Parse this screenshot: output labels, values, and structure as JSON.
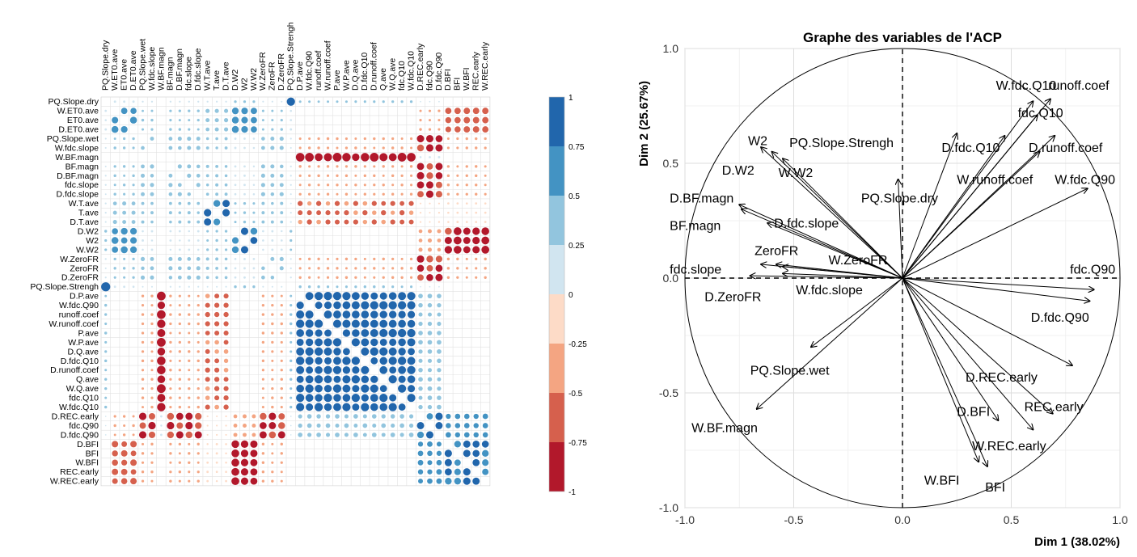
{
  "chart_data": [
    {
      "type": "heatmap",
      "variables": [
        "PQ.Slope.dry",
        "W.ET0.ave",
        "ET0.ave",
        "D.ET0.ave",
        "PQ.Slope.wet",
        "W.fdc.slope",
        "W.BF.magn",
        "BF.magn",
        "D.BF.magn",
        "fdc.slope",
        "D.fdc.slope",
        "W.T.ave",
        "T.ave",
        "D.T.ave",
        "D.W2",
        "W2",
        "W.W2",
        "W.ZeroFR",
        "ZeroFR",
        "D.ZeroFR",
        "PQ.Slope.Strengh",
        "D.P.ave",
        "W.fdc.Q90",
        "runoff.coef",
        "W.runoff.coef",
        "P.ave",
        "W.P.ave",
        "D.Q.ave",
        "D.fdc.Q10",
        "D.runoff.coef",
        "Q.ave",
        "W.Q.ave",
        "fdc.Q10",
        "W.fdc.Q10",
        "D.REC.early",
        "fdc.Q90",
        "D.fdc.Q90",
        "D.BFI",
        "BFI",
        "W.BFI",
        "REC.early",
        "W.REC.early"
      ],
      "groups": {
        "A": [
          "W.ET0.ave",
          "ET0.ave",
          "D.ET0.ave"
        ],
        "B": [
          "PQ.Slope.wet",
          "W.fdc.slope",
          "BF.magn",
          "D.BF.magn",
          "fdc.slope",
          "D.fdc.slope",
          "W.ZeroFR",
          "ZeroFR",
          "D.ZeroFR"
        ],
        "C": [
          "W.T.ave",
          "T.ave",
          "D.T.ave"
        ],
        "D": [
          "D.W2",
          "W2",
          "W.W2"
        ],
        "E": [
          "D.P.ave",
          "W.fdc.Q90",
          "runoff.coef",
          "W.runoff.coef",
          "P.ave",
          "W.P.ave",
          "D.Q.ave",
          "D.fdc.Q10",
          "D.runoff.coef",
          "Q.ave",
          "W.Q.ave",
          "fdc.Q10",
          "W.fdc.Q10"
        ],
        "F": [
          "D.REC.early",
          "fdc.Q90",
          "D.fdc.Q90"
        ],
        "G": [
          "D.BFI",
          "BFI",
          "W.BFI",
          "REC.early",
          "W.REC.early"
        ],
        "H": [
          "W.BF.magn"
        ],
        "I": [
          "PQ.Slope.dry",
          "PQ.Slope.Strengh"
        ]
      },
      "group_correlations": {
        "AA": 0.75,
        "AB": 0.3,
        "AC": 0.45,
        "AD": 0.75,
        "AE": 0.1,
        "AF": -0.3,
        "AG": -0.7,
        "AH": 0.0,
        "AI": 0.25,
        "BB": 0.45,
        "BC": 0.35,
        "BD": 0.25,
        "BE": -0.3,
        "BF": -0.8,
        "BG": -0.3,
        "BH": 0.0,
        "BI": 0.2,
        "CC": 0.8,
        "CD": 0.3,
        "CE": -0.55,
        "CF": -0.2,
        "CG": -0.25,
        "CH": 0.0,
        "CI": 0.2,
        "DD": 0.8,
        "DE": 0.05,
        "DF": -0.45,
        "DG": -0.85,
        "DH": 0.0,
        "DI": 0.3,
        "EE": 0.9,
        "EF": 0.5,
        "EG": 0.05,
        "EH": -0.95,
        "EI": 0.3,
        "FF": 0.8,
        "FG": 0.6,
        "FH": 0.25,
        "FI": 0.15,
        "GG": 0.8,
        "GH": 0.0,
        "GI": 0.05,
        "HH": 1.0,
        "HI": 0.0,
        "II": 1.0
      },
      "colorbar": {
        "ticks": [
          "1",
          "0.75",
          "0.5",
          "0.25",
          "0",
          "-0.25",
          "-0.5",
          "-0.75",
          "-1"
        ],
        "colors": [
          "#2166ac",
          "#4393c3",
          "#92c5de",
          "#d1e5f0",
          "#fddbc7",
          "#f4a582",
          "#d6604d",
          "#b2182b"
        ]
      }
    },
    {
      "type": "scatter",
      "title": "Graphe des variables de l'ACP",
      "xlabel": "Dim 1 (38.02%)",
      "ylabel": "Dim 2 (25.67%)",
      "xlim": [
        -1.0,
        1.0
      ],
      "ylim": [
        -1.0,
        1.0
      ],
      "x_ticks": [
        "-1.0",
        "-0.5",
        "0.0",
        "0.5",
        "1.0"
      ],
      "y_ticks": [
        "1.0",
        "0.5",
        "0.0",
        "-0.5",
        "-1.0"
      ],
      "vectors": [
        {
          "name": "W.fdc.Q10",
          "x": 0.6,
          "y": 0.77
        },
        {
          "name": "runoff.coef",
          "x": 0.68,
          "y": 0.78
        },
        {
          "name": "fdc.Q10",
          "x": 0.62,
          "y": 0.71
        },
        {
          "name": "D.fdc.Q10",
          "x": 0.47,
          "y": 0.62
        },
        {
          "name": "D.runoff.coef",
          "x": 0.7,
          "y": 0.62
        },
        {
          "name": "W.runoff.coef",
          "x": 0.63,
          "y": 0.55
        },
        {
          "name": "W.fdc.Q90",
          "x": 0.85,
          "y": 0.39
        },
        {
          "name": "PQ.Slope.Strengh",
          "x": 0.25,
          "y": 0.63
        },
        {
          "name": "PQ.Slope.dry",
          "x": -0.02,
          "y": 0.43
        },
        {
          "name": "W2",
          "x": -0.65,
          "y": 0.57
        },
        {
          "name": "D.W2",
          "x": -0.6,
          "y": 0.55
        },
        {
          "name": "W.W2",
          "x": -0.55,
          "y": 0.52
        },
        {
          "name": "D.BF.magn",
          "x": -0.75,
          "y": 0.32
        },
        {
          "name": "BF.magn",
          "x": -0.74,
          "y": 0.3
        },
        {
          "name": "D.fdc.slope",
          "x": -0.62,
          "y": 0.24
        },
        {
          "name": "ZeroFR",
          "x": -0.58,
          "y": 0.06
        },
        {
          "name": "W.ZeroFR",
          "x": -0.55,
          "y": 0.05
        },
        {
          "name": "fdc.slope",
          "x": -0.65,
          "y": 0.06
        },
        {
          "name": "D.ZeroFR",
          "x": -0.7,
          "y": 0.01
        },
        {
          "name": "W.fdc.slope",
          "x": -0.55,
          "y": 0.02
        },
        {
          "name": "fdc.Q90",
          "x": 0.88,
          "y": -0.05
        },
        {
          "name": "D.fdc.Q90",
          "x": 0.86,
          "y": -0.1
        },
        {
          "name": "D.REC.early",
          "x": 0.78,
          "y": -0.38
        },
        {
          "name": "REC.early",
          "x": 0.69,
          "y": -0.59
        },
        {
          "name": "D.BFI",
          "x": 0.44,
          "y": -0.62
        },
        {
          "name": "W.REC.early",
          "x": 0.6,
          "y": -0.66
        },
        {
          "name": "W.BFI",
          "x": 0.35,
          "y": -0.8
        },
        {
          "name": "BFI",
          "x": 0.39,
          "y": -0.82
        },
        {
          "name": "PQ.Slope.wet",
          "x": -0.42,
          "y": -0.3
        },
        {
          "name": "W.BF.magn",
          "x": -0.67,
          "y": -0.57
        }
      ]
    }
  ]
}
